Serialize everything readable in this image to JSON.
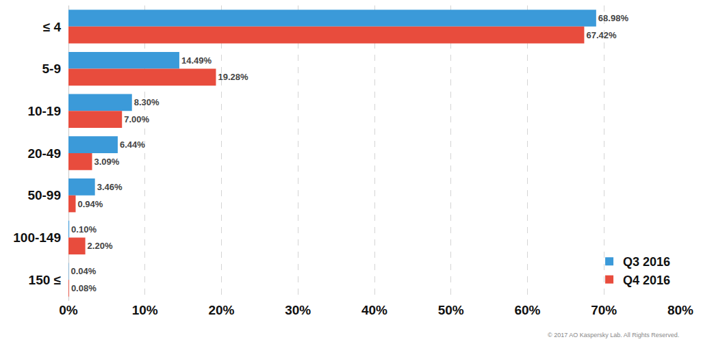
{
  "chart_data": {
    "type": "bar",
    "orientation": "horizontal",
    "categories": [
      "≤ 4",
      "5-9",
      "10-19",
      "20-49",
      "50-99",
      "100-149",
      "150 ≤"
    ],
    "series": [
      {
        "name": "Q3 2016",
        "color": "#3b9ad9",
        "values": [
          68.98,
          14.49,
          8.3,
          6.44,
          3.46,
          0.1,
          0.04
        ],
        "value_labels": [
          "68.98%",
          "14.49%",
          "8.30%",
          "6.44%",
          "3.46%",
          "0.10%",
          "0.04%"
        ]
      },
      {
        "name": "Q4 2016",
        "color": "#e84c3d",
        "values": [
          67.42,
          19.28,
          7.0,
          3.09,
          0.94,
          2.2,
          0.08
        ],
        "value_labels": [
          "67.42%",
          "19.28%",
          "7.00%",
          "3.09%",
          "0.94%",
          "2.20%",
          "0.08%"
        ]
      }
    ],
    "xlim": [
      0,
      80
    ],
    "xticks": [
      {
        "value": 0,
        "label": "0%"
      },
      {
        "value": 10,
        "label": "10%"
      },
      {
        "value": 20,
        "label": "20%"
      },
      {
        "value": 30,
        "label": "30%"
      },
      {
        "value": 40,
        "label": "40%"
      },
      {
        "value": 50,
        "label": "50%"
      },
      {
        "value": 60,
        "label": "60%"
      },
      {
        "value": 70,
        "label": "70%"
      },
      {
        "value": 80,
        "label": "80%"
      }
    ],
    "grid": true,
    "data_labels": true,
    "legend": "lower right",
    "annotations": [
      "© 2017 AO Kaspersky Lab. All Rights Reserved."
    ]
  }
}
